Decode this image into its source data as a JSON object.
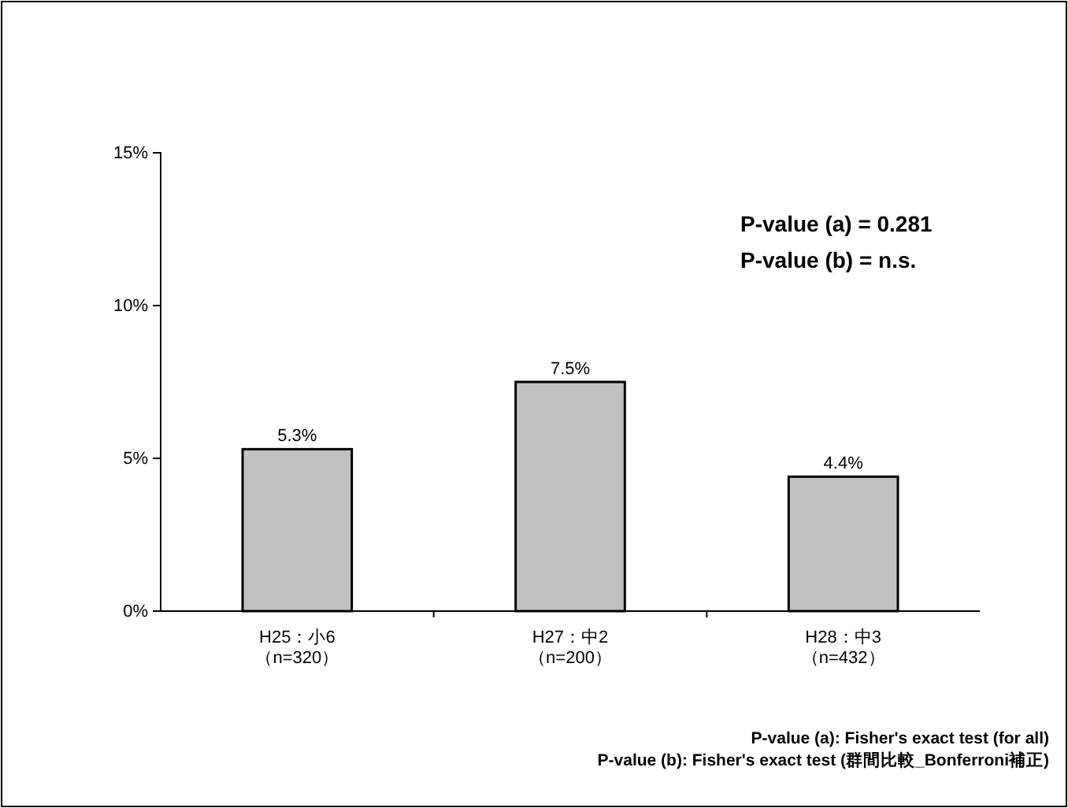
{
  "chart_data": {
    "type": "bar",
    "categories": [
      "H25：小6\n（n=320）",
      "H27：中2\n（n=200）",
      "H28：中3\n（n=432）"
    ],
    "values": [
      5.3,
      7.5,
      4.4
    ],
    "value_labels": [
      "5.3%",
      "7.5%",
      "4.4%"
    ],
    "color": "#c0c0c0",
    "ylim": [
      0,
      15
    ],
    "yticks": [
      {
        "value": 0,
        "label": "0%"
      },
      {
        "value": 5,
        "label": "5%"
      },
      {
        "value": 10,
        "label": "10%"
      },
      {
        "value": 15,
        "label": "15%"
      }
    ],
    "grid": false,
    "annotations": [
      "P-value (a) = 0.281",
      "P-value (b) = n.s.",
      "P-value (a): Fisher's exact test (for all)",
      "P-value (b): Fisher's exact test (群間比較_Bonferroni補正)"
    ]
  }
}
